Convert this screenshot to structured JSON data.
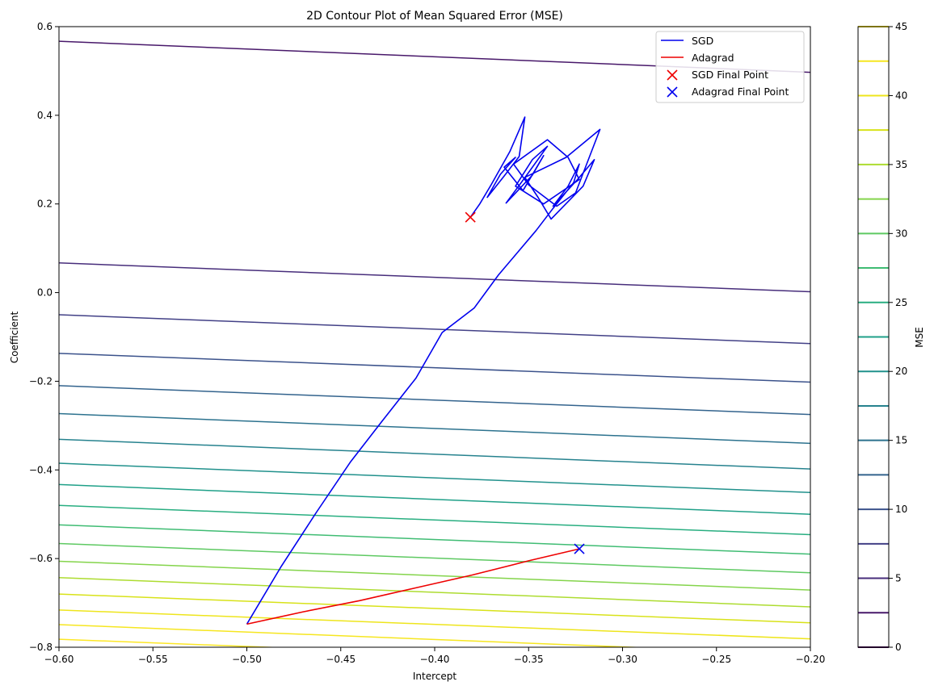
{
  "chart_data": {
    "type": "line",
    "title": "2D Contour Plot of Mean Squared Error (MSE)",
    "xlabel": "Intercept",
    "ylabel": "Coefficient",
    "xlim": [
      -0.6,
      -0.2
    ],
    "ylim": [
      -0.8,
      0.6
    ],
    "xticks": [
      -0.6,
      -0.55,
      -0.5,
      -0.45,
      -0.4,
      -0.35,
      -0.3,
      -0.25,
      -0.2
    ],
    "xtick_labels": [
      "−0.60",
      "−0.55",
      "−0.50",
      "−0.45",
      "−0.40",
      "−0.35",
      "−0.30",
      "−0.25",
      "−0.20"
    ],
    "yticks": [
      -0.8,
      -0.6,
      -0.4,
      -0.2,
      0.0,
      0.2,
      0.4,
      0.6
    ],
    "ytick_labels": [
      "−0.8",
      "−0.6",
      "−0.4",
      "−0.2",
      "0.0",
      "0.2",
      "0.4",
      "0.6"
    ],
    "grid": false,
    "legend_position": "top-right",
    "contours": {
      "colormap": "viridis",
      "levels": [
        {
          "value": 2.5,
          "y_at_left": 0.567,
          "y_at_right": 0.497,
          "color": "#48186a"
        },
        {
          "value": 5.0,
          "y_at_left": 0.067,
          "y_at_right": 0.002,
          "color": "#472d7b"
        },
        {
          "value": 7.5,
          "y_at_left": -0.05,
          "y_at_right": -0.115,
          "color": "#424086"
        },
        {
          "value": 10.0,
          "y_at_left": -0.137,
          "y_at_right": -0.202,
          "color": "#3b528b"
        },
        {
          "value": 12.5,
          "y_at_left": -0.21,
          "y_at_right": -0.275,
          "color": "#33638d"
        },
        {
          "value": 15.0,
          "y_at_left": -0.273,
          "y_at_right": -0.34,
          "color": "#2c728e"
        },
        {
          "value": 17.5,
          "y_at_left": -0.331,
          "y_at_right": -0.398,
          "color": "#26828e"
        },
        {
          "value": 20.0,
          "y_at_left": -0.385,
          "y_at_right": -0.451,
          "color": "#21918c"
        },
        {
          "value": 22.5,
          "y_at_left": -0.433,
          "y_at_right": -0.5,
          "color": "#1fa088"
        },
        {
          "value": 25.0,
          "y_at_left": -0.48,
          "y_at_right": -0.546,
          "color": "#28ae80"
        },
        {
          "value": 27.5,
          "y_at_left": -0.524,
          "y_at_right": -0.59,
          "color": "#3fbc73"
        },
        {
          "value": 30.0,
          "y_at_left": -0.566,
          "y_at_right": -0.632,
          "color": "#5ec962"
        },
        {
          "value": 32.5,
          "y_at_left": -0.606,
          "y_at_right": -0.671,
          "color": "#84d44b"
        },
        {
          "value": 35.0,
          "y_at_left": -0.643,
          "y_at_right": -0.709,
          "color": "#addc30"
        },
        {
          "value": 37.5,
          "y_at_left": -0.68,
          "y_at_right": -0.745,
          "color": "#d8e219"
        },
        {
          "value": 40.0,
          "y_at_left": -0.716,
          "y_at_right": -0.781,
          "color": "#eee51c"
        },
        {
          "value": 42.5,
          "y_at_left": -0.749,
          "y_at_right": -0.816,
          "color": "#f6e620"
        },
        {
          "value": 45.0,
          "y_at_left": -0.782,
          "y_at_right": -0.847,
          "color": "#fde725"
        }
      ]
    },
    "series": [
      {
        "name": "SGD",
        "color": "#0000ee",
        "x": [
          -0.5,
          -0.482,
          -0.463,
          -0.445,
          -0.428,
          -0.41,
          -0.396,
          -0.379,
          -0.366,
          -0.356,
          -0.346,
          -0.337,
          -0.326,
          -0.323,
          -0.329,
          -0.337,
          -0.324,
          -0.315,
          -0.321,
          -0.338,
          -0.345,
          -0.352,
          -0.33,
          -0.312,
          -0.325,
          -0.335,
          -0.35,
          -0.358,
          -0.34,
          -0.329,
          -0.323,
          -0.342,
          -0.357,
          -0.348,
          -0.34,
          -0.351,
          -0.362,
          -0.348,
          -0.342,
          -0.353,
          -0.363,
          -0.357,
          -0.365,
          -0.372,
          -0.363,
          -0.355,
          -0.352,
          -0.36,
          -0.37,
          -0.376,
          -0.381
        ],
        "y": [
          -0.748,
          -0.62,
          -0.496,
          -0.383,
          -0.29,
          -0.193,
          -0.09,
          -0.035,
          0.04,
          0.09,
          0.14,
          0.19,
          0.248,
          0.29,
          0.24,
          0.195,
          0.255,
          0.3,
          0.24,
          0.166,
          0.215,
          0.26,
          0.305,
          0.368,
          0.225,
          0.195,
          0.243,
          0.29,
          0.345,
          0.305,
          0.255,
          0.2,
          0.24,
          0.3,
          0.33,
          0.265,
          0.202,
          0.265,
          0.309,
          0.23,
          0.283,
          0.305,
          0.267,
          0.215,
          0.263,
          0.307,
          0.396,
          0.318,
          0.243,
          0.2,
          0.17
        ]
      },
      {
        "name": "Adagrad",
        "color": "#ee0000",
        "x": [
          -0.5,
          -0.47,
          -0.44,
          -0.41,
          -0.38,
          -0.35,
          -0.323
        ],
        "y": [
          -0.748,
          -0.72,
          -0.695,
          -0.666,
          -0.637,
          -0.605,
          -0.578
        ]
      }
    ],
    "markers": [
      {
        "name": "SGD Final Point",
        "color": "#ee0000",
        "x": -0.381,
        "y": 0.17
      },
      {
        "name": "Adagrad Final Point",
        "color": "#0000ee",
        "x": -0.323,
        "y": -0.578
      }
    ],
    "colorbar": {
      "label": "MSE",
      "range": [
        0,
        45
      ],
      "ticks": [
        0,
        5,
        10,
        15,
        20,
        25,
        30,
        35,
        40,
        45
      ],
      "tick_labels": [
        "0",
        "5",
        "10",
        "15",
        "20",
        "25",
        "30",
        "35",
        "40",
        "45"
      ],
      "line_levels": [
        0,
        2.5,
        5,
        7.5,
        10,
        12.5,
        15,
        17.5,
        20,
        22.5,
        25,
        27.5,
        30,
        32.5,
        35,
        37.5,
        40,
        42.5,
        45
      ],
      "line_colors": [
        "#440154",
        "#48186a",
        "#472d7b",
        "#424086",
        "#3b528b",
        "#33638d",
        "#2c728e",
        "#26828e",
        "#21918c",
        "#1fa088",
        "#28ae80",
        "#3fbc73",
        "#5ec962",
        "#84d44b",
        "#addc30",
        "#d8e219",
        "#eee51c",
        "#f6e620",
        "#fde725"
      ]
    }
  }
}
